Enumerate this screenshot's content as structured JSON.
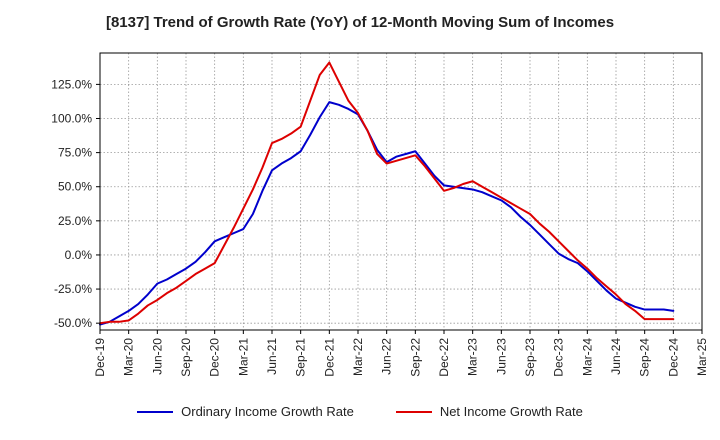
{
  "chart_data": {
    "type": "line",
    "title": "[8137]  Trend of Growth Rate (YoY) of 12-Month Moving Sum of Incomes",
    "xlabel": "",
    "ylabel": "",
    "x_tick_labels": [
      "Dec-19",
      "Mar-20",
      "Jun-20",
      "Sep-20",
      "Dec-20",
      "Mar-21",
      "Jun-21",
      "Sep-21",
      "Dec-21",
      "Mar-22",
      "Jun-22",
      "Sep-22",
      "Dec-22",
      "Mar-23",
      "Jun-23",
      "Sep-23",
      "Dec-23",
      "Mar-24",
      "Jun-24",
      "Sep-24",
      "Dec-24",
      "Mar-25"
    ],
    "y_ticks": [
      -50,
      -25,
      0,
      25,
      50,
      75,
      100,
      125
    ],
    "y_tick_labels": [
      "-50.0%",
      "-25.0%",
      "0.0%",
      "25.0%",
      "50.0%",
      "75.0%",
      "100.0%",
      "125.0%"
    ],
    "ylim": [
      -55,
      148
    ],
    "x_months": [
      "Dec-19",
      "Jan-20",
      "Feb-20",
      "Mar-20",
      "Apr-20",
      "May-20",
      "Jun-20",
      "Jul-20",
      "Aug-20",
      "Sep-20",
      "Oct-20",
      "Nov-20",
      "Dec-20",
      "Jan-21",
      "Feb-21",
      "Mar-21",
      "Apr-21",
      "May-21",
      "Jun-21",
      "Jul-21",
      "Aug-21",
      "Sep-21",
      "Oct-21",
      "Nov-21",
      "Dec-21",
      "Jan-22",
      "Feb-22",
      "Mar-22",
      "Apr-22",
      "May-22",
      "Jun-22",
      "Jul-22",
      "Aug-22",
      "Sep-22",
      "Oct-22",
      "Nov-22",
      "Dec-22",
      "Jan-23",
      "Feb-23",
      "Mar-23",
      "Apr-23",
      "May-23",
      "Jun-23",
      "Jul-23",
      "Aug-23",
      "Sep-23",
      "Oct-23",
      "Nov-23",
      "Dec-23",
      "Jan-24",
      "Feb-24",
      "Mar-24",
      "Apr-24",
      "May-24",
      "Jun-24",
      "Jul-24",
      "Aug-24",
      "Sep-24",
      "Oct-24",
      "Nov-24",
      "Dec-24"
    ],
    "grid": true,
    "legend_position": "bottom",
    "series": [
      {
        "name": "Ordinary Income Growth Rate",
        "color": "#0000cc",
        "values": [
          -51,
          -49,
          -45,
          -41,
          -36,
          -29,
          -21,
          -18,
          -14,
          -10,
          -5,
          2,
          10,
          13,
          16,
          19,
          30,
          47,
          62,
          67,
          71,
          76,
          88,
          101,
          112,
          110,
          107,
          103,
          91,
          77,
          68,
          72,
          74,
          76,
          67,
          58,
          51,
          50,
          49,
          48,
          46,
          43,
          40,
          35,
          28,
          22,
          15,
          8,
          1,
          -3,
          -6,
          -12,
          -19,
          -26,
          -32,
          -35,
          -38,
          -40,
          -40,
          -40,
          -41
        ]
      },
      {
        "name": "Net Income Growth Rate",
        "color": "#dd0000",
        "values": [
          -50,
          -49,
          -49,
          -48,
          -43,
          -37,
          -33,
          -28,
          -24,
          -19,
          -14,
          -10,
          -6,
          7,
          20,
          34,
          48,
          64,
          82,
          85,
          89,
          94,
          113,
          132,
          141,
          127,
          113,
          104,
          91,
          74,
          67,
          69,
          71,
          73,
          65,
          56,
          47,
          49,
          52,
          54,
          50,
          46,
          42,
          38,
          34,
          30,
          23,
          17,
          10,
          3,
          -4,
          -10,
          -17,
          -23,
          -29,
          -36,
          -41,
          -47,
          -47,
          -47,
          -47
        ]
      }
    ]
  }
}
